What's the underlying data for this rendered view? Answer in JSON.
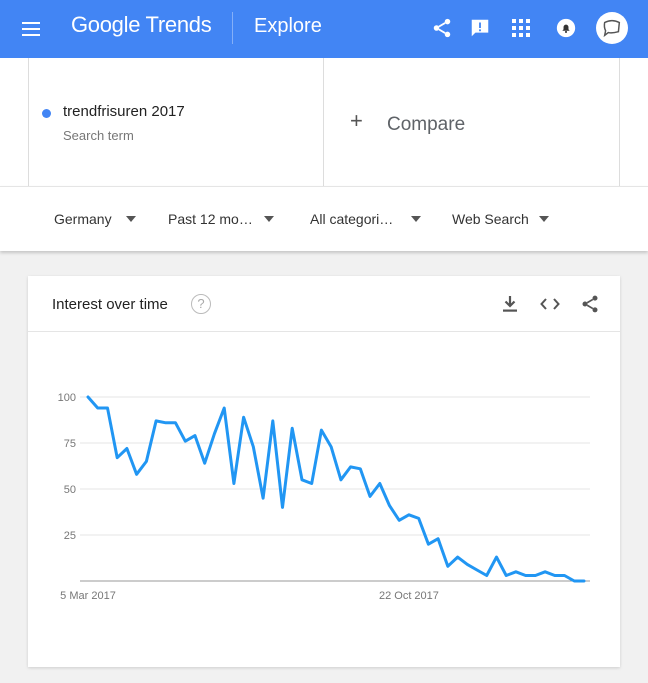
{
  "header": {
    "logo_text": "Google Trends",
    "section": "Explore",
    "brand_color": "#4285f4"
  },
  "search_term": {
    "name": "trendfrisuren 2017",
    "subtitle": "Search term",
    "color": "#4285f4"
  },
  "compare": {
    "label": "Compare"
  },
  "filters": {
    "region": "Germany",
    "time": "Past 12 mo…",
    "category": "All categori…",
    "search_type": "Web Search"
  },
  "card": {
    "title": "Interest over time",
    "help_glyph": "?"
  },
  "chart_data": {
    "type": "line",
    "title": "Interest over time",
    "x_tick_labels": [
      "5 Mar 2017",
      "22 Oct 2017"
    ],
    "x_tick_indices": [
      0,
      33
    ],
    "y_tick_labels": [
      "100",
      "75",
      "50",
      "25"
    ],
    "ylim": [
      0,
      100
    ],
    "grid": true,
    "line_color": "#2196f3",
    "series": [
      {
        "values": [
          100,
          94,
          94,
          67,
          72,
          58,
          65,
          87,
          86,
          86,
          76,
          79,
          64,
          80,
          94,
          53,
          89,
          73,
          45,
          87,
          40,
          83,
          55,
          53,
          82,
          73,
          55,
          62,
          61,
          46,
          53,
          41,
          33,
          36,
          34,
          20,
          23,
          8,
          13,
          9,
          6,
          3,
          13,
          3,
          5,
          3,
          3,
          5,
          3,
          3,
          0,
          0
        ]
      }
    ]
  }
}
